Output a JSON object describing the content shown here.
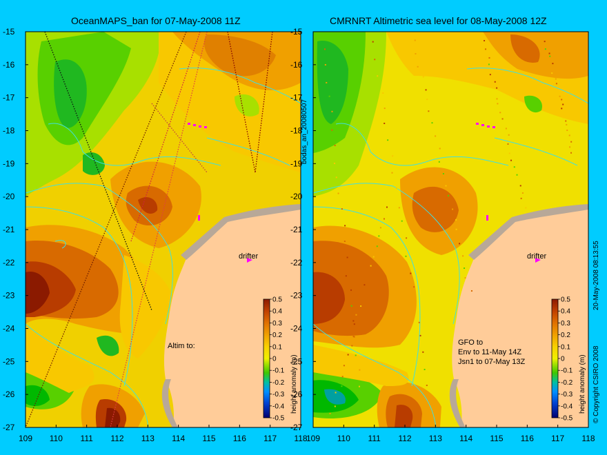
{
  "panels": [
    {
      "title": "OceanMAPS_ban for 07-May-2008 11Z",
      "drifter_label": "drifter",
      "altim_label": "Altim to:",
      "altim_lines": [],
      "colorbar_label": "height anomaly (m)"
    },
    {
      "title": "CMRNRT Altimetric sea level  for 08-May-2008 12Z",
      "drifter_label": "drifter",
      "altim_label": "GFO to",
      "altim_lines": [
        "Env to 11-May 14Z",
        "Jsn1 to 07-May 13Z"
      ],
      "colorbar_label": "height anomaly (m)"
    }
  ],
  "map_data": {
    "lat_ticks": [
      "-15",
      "-16",
      "-17",
      "-18",
      "-19",
      "-20",
      "-21",
      "-22",
      "-23",
      "-24",
      "-25",
      "-26",
      "-27"
    ],
    "lon_ticks": [
      "109",
      "110",
      "111",
      "112",
      "113",
      "114",
      "115",
      "116",
      "117",
      "118"
    ],
    "colorbar_ticks": [
      "0.5",
      "0.4",
      "0.3",
      "0.2",
      "0.1",
      "0",
      "-0.1",
      "-0.2",
      "-0.3",
      "-0.4",
      "-0.5"
    ],
    "colorbar_colors": [
      "#8b1a00",
      "#b83c00",
      "#d86a00",
      "#f09800",
      "#f8c800",
      "#f0f000",
      "#a8e800",
      "#58d000",
      "#00b800",
      "#00c8c8",
      "#0080ff",
      "#0030d0",
      "#000080"
    ],
    "land_color": "#ffcc99",
    "shelf_color": "#b8a898",
    "contour_color": "#40e0e0"
  },
  "side_labels": {
    "left": "bodas_an_20080507",
    "right": "20-May-2008 08:13:55",
    "copyright": "© Copyright CSIRO 2008"
  }
}
